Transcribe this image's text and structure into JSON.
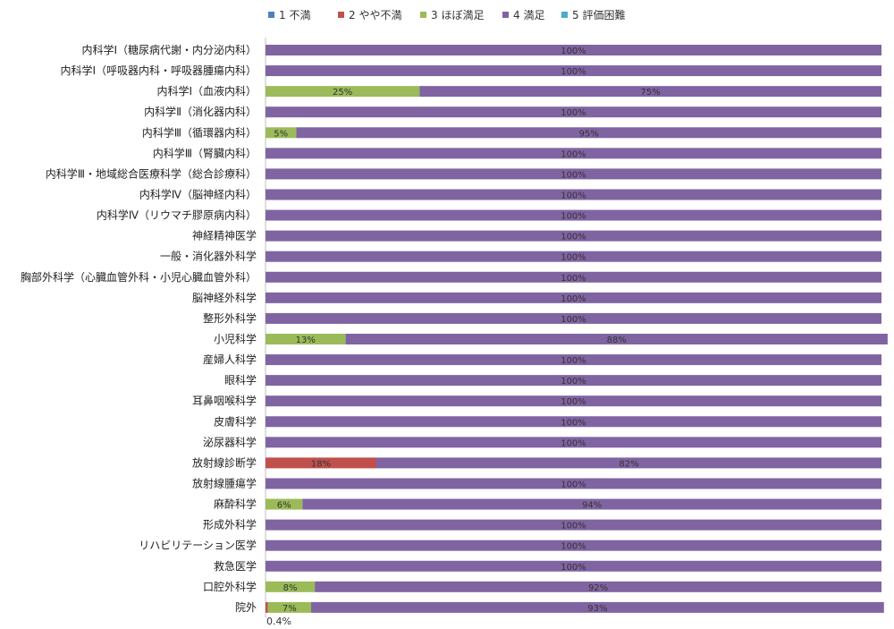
{
  "chart_data": {
    "type": "bar",
    "orientation": "horizontal-stacked-100",
    "categories": [
      "内科学Ⅰ（糖尿病代謝・内分泌内科）",
      "内科学Ⅰ（呼吸器内科・呼吸器腫瘍内科）",
      "内科学Ⅰ（血液内科）",
      "内科学Ⅱ（消化器内科）",
      "内科学Ⅲ（循環器内科）",
      "内科学Ⅲ（腎臓内科）",
      "内科学Ⅲ・地域総合医療科学（総合診療科）",
      "内科学Ⅳ（脳神経内科）",
      "内科学Ⅳ（リウマチ膠原病内科）",
      "神経精神医学",
      "一般・消化器外科学",
      "胸部外科学（心臓血管外科・小児心臓血管外科）",
      "脳神経外科学",
      "整形外科学",
      "小児科学",
      "産婦人科学",
      "眼科学",
      "耳鼻咽喉科学",
      "皮膚科学",
      "泌尿器科学",
      "放射線診断学",
      "放射線腫瘍学",
      "麻酔科学",
      "形成外科学",
      "リハビリテーション医学",
      "救急医学",
      "口腔外科学",
      "院外"
    ],
    "series": [
      {
        "name": "1 不満",
        "color": "#4f81bd",
        "values": [
          0,
          0,
          0,
          0,
          0,
          0,
          0,
          0,
          0,
          0,
          0,
          0,
          0,
          0,
          0,
          0,
          0,
          0,
          0,
          0,
          0,
          0,
          0,
          0,
          0,
          0,
          0,
          0
        ]
      },
      {
        "name": "2 やや不満",
        "color": "#c0504d",
        "values": [
          0,
          0,
          0,
          0,
          0,
          0,
          0,
          0,
          0,
          0,
          0,
          0,
          0,
          0,
          0,
          0,
          0,
          0,
          0,
          0,
          18,
          0,
          0,
          0,
          0,
          0,
          0,
          0.4
        ]
      },
      {
        "name": "3 ほぼ満足",
        "color": "#9bbb59",
        "values": [
          0,
          0,
          25,
          0,
          5,
          0,
          0,
          0,
          0,
          0,
          0,
          0,
          0,
          0,
          13,
          0,
          0,
          0,
          0,
          0,
          0,
          0,
          6,
          0,
          0,
          0,
          8,
          7
        ]
      },
      {
        "name": "4 満足",
        "color": "#8064a2",
        "values": [
          100,
          100,
          75,
          100,
          95,
          100,
          100,
          100,
          100,
          100,
          100,
          100,
          100,
          100,
          88,
          100,
          100,
          100,
          100,
          100,
          82,
          100,
          94,
          100,
          100,
          100,
          92,
          93
        ]
      },
      {
        "name": "5 評価困難",
        "color": "#4bacc6",
        "values": [
          0,
          0,
          0,
          0,
          0,
          0,
          0,
          0,
          0,
          0,
          0,
          0,
          0,
          0,
          0,
          0,
          0,
          0,
          0,
          0,
          0,
          0,
          0,
          0,
          0,
          0,
          0,
          0
        ]
      }
    ],
    "data_labels": [
      {
        "category": "院外",
        "series": "2 やや不満",
        "text": "0.4%",
        "placement": "below"
      }
    ],
    "xlim": [
      0,
      100
    ],
    "unit": "%",
    "legend_position": "top",
    "grid": false
  }
}
